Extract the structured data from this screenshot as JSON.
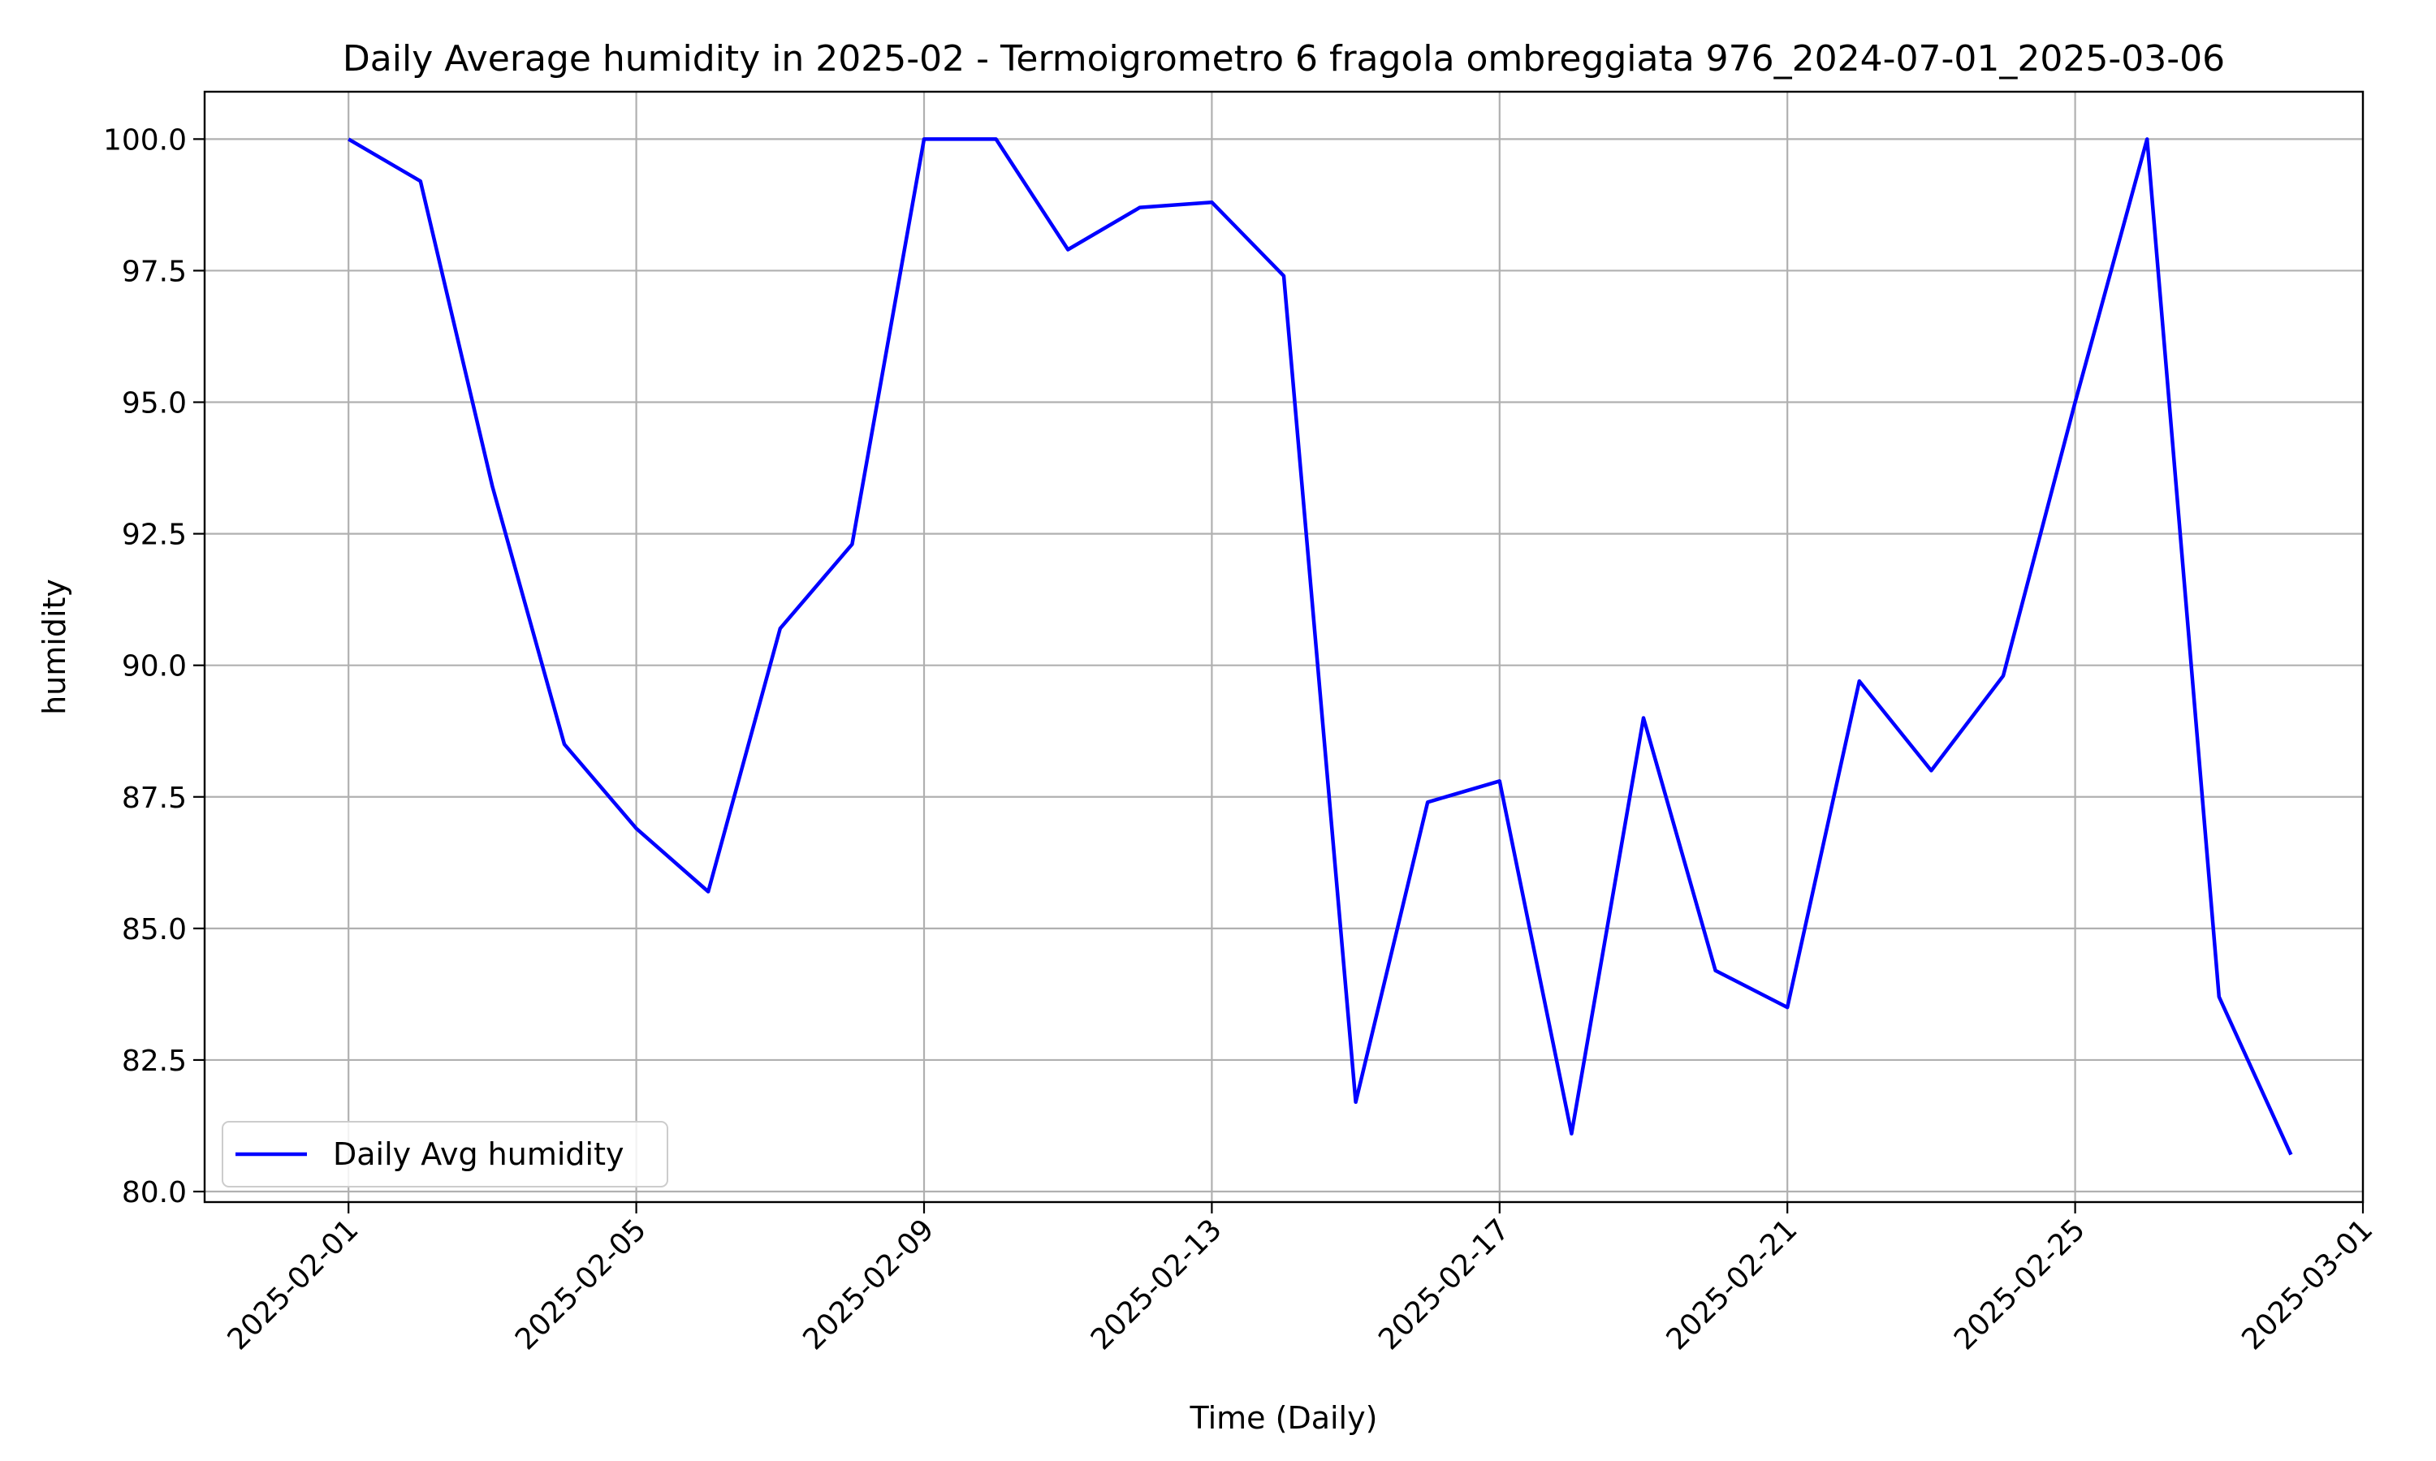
{
  "chart_data": {
    "type": "line",
    "title": "Daily Average humidity in 2025-02 - Termoigrometro 6 fragola ombreggiata 976_2024-07-01_2025-03-06",
    "xlabel": "Time (Daily)",
    "ylabel": "humidity",
    "x_type": "date",
    "xlim": [
      "2025-01-30",
      "2025-03-01"
    ],
    "ylim": [
      79.8,
      100.9
    ],
    "x_ticks": [
      "2025-02-01",
      "2025-02-05",
      "2025-02-09",
      "2025-02-13",
      "2025-02-17",
      "2025-02-21",
      "2025-02-25",
      "2025-03-01"
    ],
    "y_ticks": [
      80.0,
      82.5,
      85.0,
      87.5,
      90.0,
      92.5,
      95.0,
      97.5,
      100.0
    ],
    "grid": true,
    "legend_position": "lower-left",
    "series": [
      {
        "name": "Daily Avg humidity",
        "color": "#0000ff",
        "x": [
          "2025-02-01",
          "2025-02-02",
          "2025-02-03",
          "2025-02-04",
          "2025-02-05",
          "2025-02-06",
          "2025-02-07",
          "2025-02-08",
          "2025-02-09",
          "2025-02-10",
          "2025-02-11",
          "2025-02-12",
          "2025-02-13",
          "2025-02-14",
          "2025-02-15",
          "2025-02-16",
          "2025-02-17",
          "2025-02-18",
          "2025-02-19",
          "2025-02-20",
          "2025-02-21",
          "2025-02-22",
          "2025-02-23",
          "2025-02-24",
          "2025-02-25",
          "2025-02-26",
          "2025-02-27",
          "2025-02-28"
        ],
        "values": [
          100.0,
          99.2,
          93.4,
          88.5,
          86.9,
          85.7,
          90.7,
          92.3,
          100.0,
          100.0,
          97.9,
          98.7,
          98.8,
          97.4,
          81.7,
          87.4,
          87.8,
          81.1,
          89.0,
          84.2,
          83.5,
          89.7,
          88.0,
          89.8,
          95.0,
          100.0,
          83.7,
          80.7
        ]
      }
    ]
  }
}
